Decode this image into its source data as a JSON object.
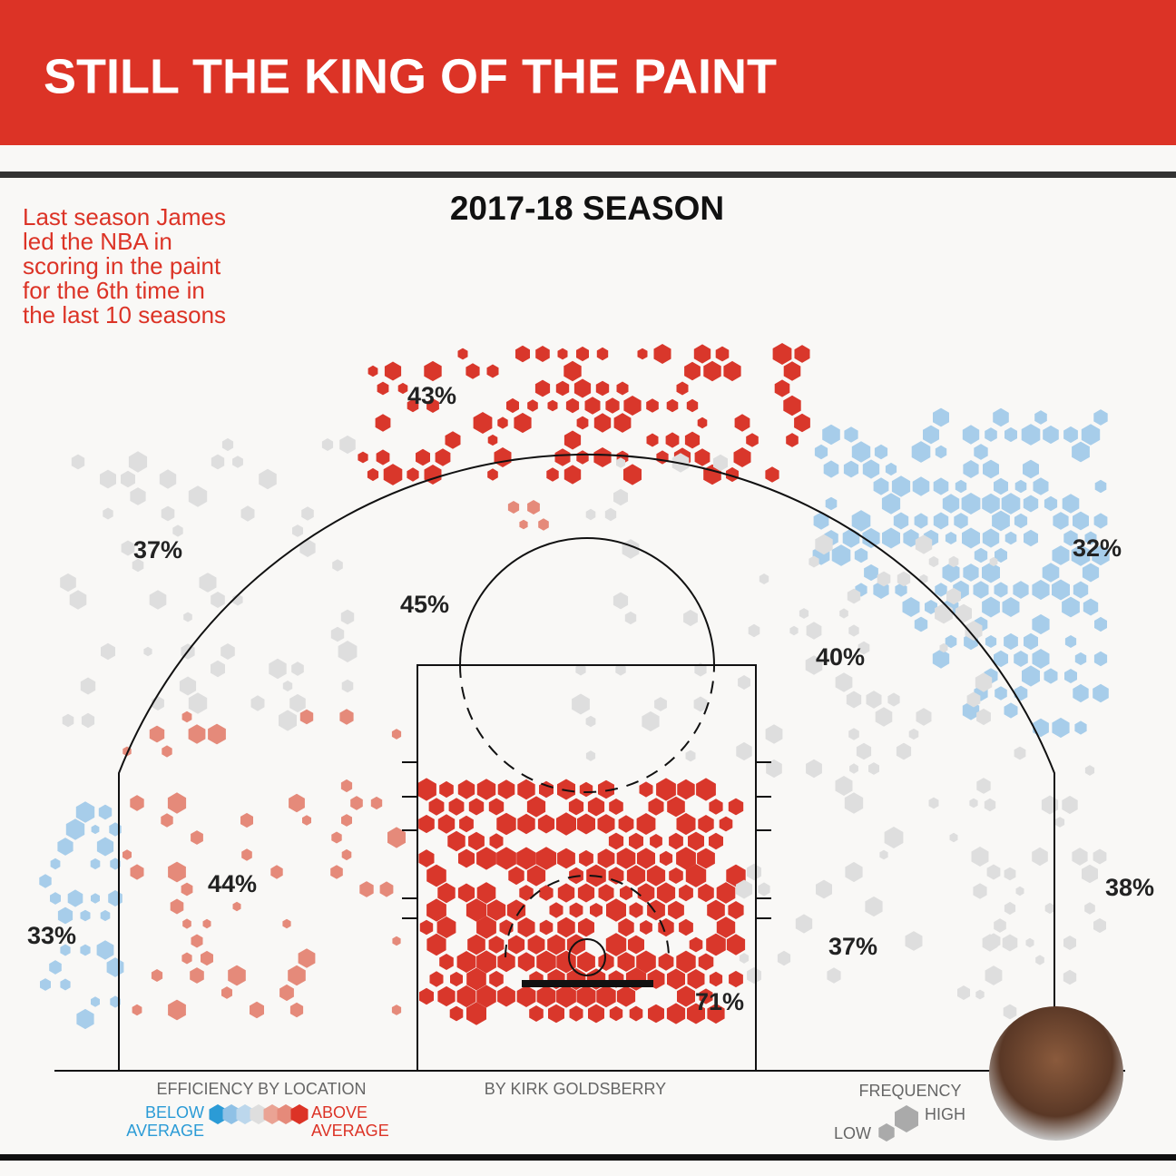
{
  "header": {
    "title": "STILL THE KING OF THE PAINT"
  },
  "subtitle": "2017-18 SEASON",
  "note": [
    "Last season James",
    "led the NBA in",
    "scoring in the paint",
    "for the 6th time in",
    "the last 10 seasons"
  ],
  "zones": [
    "43%",
    "37%",
    "45%",
    "40%",
    "32%",
    "44%",
    "33%",
    "71%",
    "37%",
    "38%"
  ],
  "legend": {
    "efficiency": {
      "title": "EFFICIENCY BY LOCATION",
      "below": [
        "BELOW",
        "AVERAGE"
      ],
      "above": [
        "ABOVE",
        "AVERAGE"
      ]
    },
    "frequency": {
      "title": "FREQUENCY",
      "high": "HIGH",
      "low": "LOW"
    }
  },
  "credit": "BY KIRK GOLDSBERRY"
}
